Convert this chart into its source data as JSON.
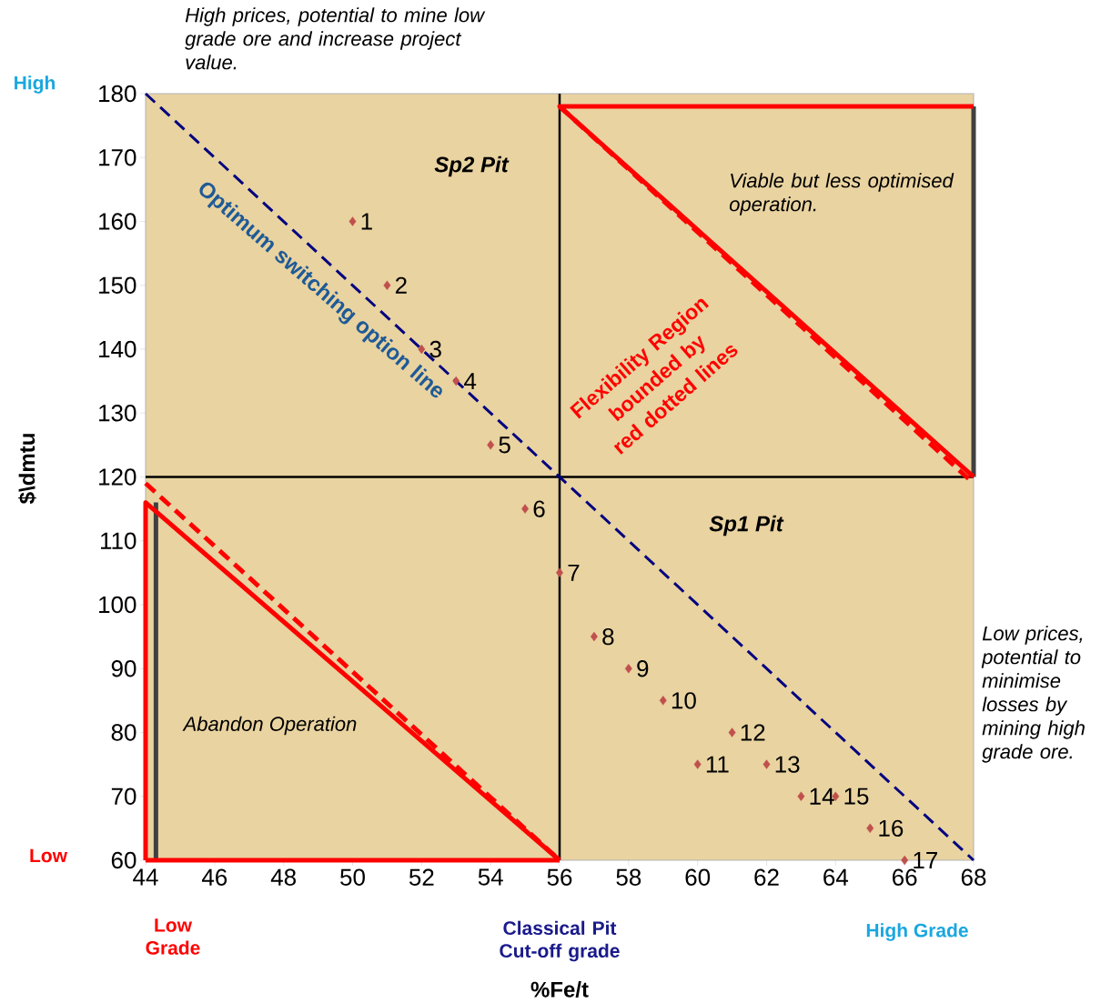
{
  "chart_data": {
    "type": "scatter",
    "xlabel": "%Fe/t",
    "ylabel": "$\\dmtu",
    "xlim": [
      44,
      68
    ],
    "ylim": [
      60,
      180
    ],
    "xticks": [
      44,
      46,
      48,
      50,
      52,
      54,
      56,
      58,
      60,
      62,
      64,
      66,
      68
    ],
    "yticks": [
      60,
      70,
      80,
      90,
      100,
      110,
      120,
      130,
      140,
      150,
      160,
      170,
      180
    ],
    "marker": "diamond",
    "series": [
      {
        "color": "#c0504d",
        "x": [
          50,
          51,
          52,
          53,
          54,
          55,
          56,
          57,
          58,
          59,
          60,
          61,
          62,
          63,
          64,
          65,
          66
        ],
        "values": [
          160,
          150,
          140,
          135,
          125,
          115,
          105,
          95,
          90,
          85,
          75,
          80,
          75,
          70,
          70,
          65,
          60
        ]
      },
      {
        "type": "line",
        "marker": "none",
        "color": "#000080",
        "line_style": "dashed",
        "x": [
          44,
          68
        ],
        "values": [
          180,
          60
        ]
      },
      {
        "type": "line",
        "marker": "none",
        "color": "#404040",
        "line_style": "solid",
        "x": [
          68,
          68
        ],
        "values": [
          178,
          120
        ]
      },
      {
        "type": "line",
        "marker": "none",
        "color": "#ff0000",
        "line_style": "solid",
        "x": [
          68,
          56,
          68
        ],
        "values": [
          178,
          178,
          120
        ]
      },
      {
        "type": "line",
        "marker": "none",
        "color": "#ff0000",
        "line_style": "dashed",
        "x": [
          56,
          68
        ],
        "values": [
          178,
          119
        ]
      },
      {
        "type": "line",
        "marker": "none",
        "color": "#404040",
        "line_style": "solid",
        "x": [
          44.3,
          44.3
        ],
        "values": [
          116,
          60
        ]
      },
      {
        "type": "line",
        "marker": "none",
        "color": "#ff0000",
        "line_style": "solid",
        "x": [
          56,
          44,
          44
        ],
        "values": [
          60,
          116,
          60
        ]
      },
      {
        "type": "line",
        "marker": "none",
        "color": "#ff0000",
        "line_style": "solid",
        "x": [
          44,
          56
        ],
        "values": [
          60,
          60
        ]
      },
      {
        "type": "line",
        "marker": "none",
        "color": "#ff0000",
        "line_style": "dashed",
        "x": [
          44,
          56
        ],
        "values": [
          119,
          60
        ]
      }
    ],
    "ref_lines": [
      {
        "axis": "x",
        "value": 56,
        "color": "#000000"
      },
      {
        "axis": "y",
        "value": 120,
        "color": "#000000"
      }
    ],
    "annotations": [
      {
        "text": "1",
        "x": 50,
        "y": 160
      },
      {
        "text": "2",
        "x": 51,
        "y": 150
      },
      {
        "text": "3",
        "x": 52,
        "y": 140
      },
      {
        "text": "4",
        "x": 53,
        "y": 135
      },
      {
        "text": "5",
        "x": 54,
        "y": 125
      },
      {
        "text": "6",
        "x": 55,
        "y": 115
      },
      {
        "text": "7",
        "x": 56,
        "y": 105
      },
      {
        "text": "8",
        "x": 57,
        "y": 95
      },
      {
        "text": "9",
        "x": 58,
        "y": 90
      },
      {
        "text": "10",
        "x": 59,
        "y": 85
      },
      {
        "text": "11",
        "x": 60,
        "y": 75
      },
      {
        "text": "12",
        "x": 61,
        "y": 80
      },
      {
        "text": "13",
        "x": 62,
        "y": 75
      },
      {
        "text": "14",
        "x": 63,
        "y": 70
      },
      {
        "text": "15",
        "x": 64,
        "y": 70
      },
      {
        "text": "16",
        "x": 65,
        "y": 65
      },
      {
        "text": "17",
        "x": 66,
        "y": 60
      },
      "High prices, potential to mine low grade ore and increase project value.",
      "Low prices, potential to minimise losses by mining high grade ore.",
      "Sp2 Pit",
      "Sp1 Pit",
      "Viable but less optimised operation.",
      "Abandon Operation",
      "Flexibility Region bounded by red dotted lines",
      "Optimum switching option line",
      "High",
      "Low",
      "Low Grade",
      "Classical Pit Cut-off grade",
      "High Grade"
    ]
  }
}
